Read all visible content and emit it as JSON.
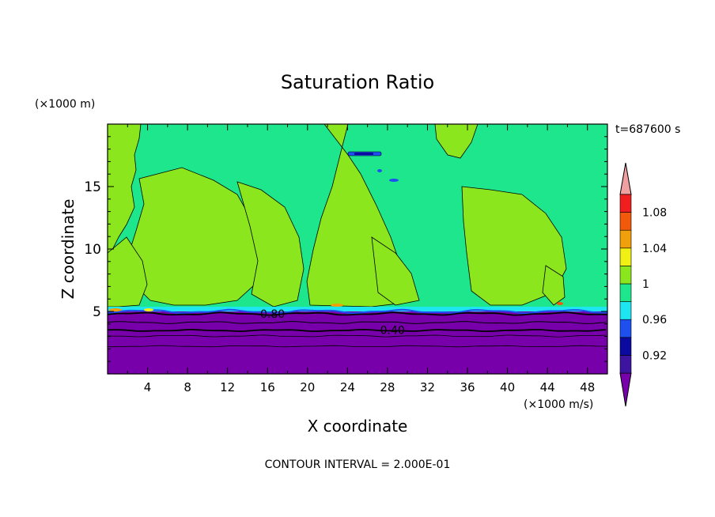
{
  "chart_data": {
    "type": "heatmap",
    "title": "Saturation Ratio",
    "xlabel": "X coordinate",
    "ylabel": "Z coordinate",
    "x_unit": "(×1000 m/s)",
    "y_unit": "(×1000 m)",
    "time_label": "t=687600 s",
    "footer": "CONTOUR INTERVAL = 2.000E-01",
    "xlim": [
      0,
      50
    ],
    "ylim": [
      0,
      20
    ],
    "x_ticks": [
      "4",
      "8",
      "12",
      "16",
      "20",
      "24",
      "28",
      "32",
      "36",
      "40",
      "44",
      "48"
    ],
    "y_ticks": [
      "5",
      "10",
      "15"
    ],
    "colorbar": {
      "levels": [
        0.9,
        0.92,
        0.94,
        0.96,
        0.98,
        1.0,
        1.02,
        1.04,
        1.06,
        1.08,
        1.1
      ],
      "tick_labels": [
        "0.92",
        "0.96",
        "1",
        "1.04",
        "1.08"
      ],
      "colors": [
        "#3c14a0",
        "#0a0aa0",
        "#1e50f0",
        "#1ee6f0",
        "#1ee68c",
        "#8ce61e",
        "#f0f014",
        "#f0a00a",
        "#f05a0a",
        "#f01e1e"
      ],
      "under_color": "#7800aa",
      "over_color": "#f0a0a0"
    },
    "contour_labels": [
      {
        "text": "0.80",
        "x": 16.5,
        "z": 4.8
      },
      {
        "text": "0.40",
        "x": 28.5,
        "z": 3.5
      }
    ],
    "regions": [
      {
        "value": 0.7,
        "description": "Lower troposphere is strongly subsaturated, from the ground up to about 4.9 km."
      },
      {
        "value": 0.99,
        "description": "A thin layer slightly below saturation sits on top of the dry layer at about 5 km."
      },
      {
        "value": 1.01,
        "description": "Slightly supersaturated areas above 5 km, in broad patches around x=0–12, x=20–32 and x=36–46."
      }
    ]
  },
  "colors": {
    "under": "#7800aa",
    "sat_low": "#1ee68c",
    "sat_high": "#8ce61e"
  }
}
